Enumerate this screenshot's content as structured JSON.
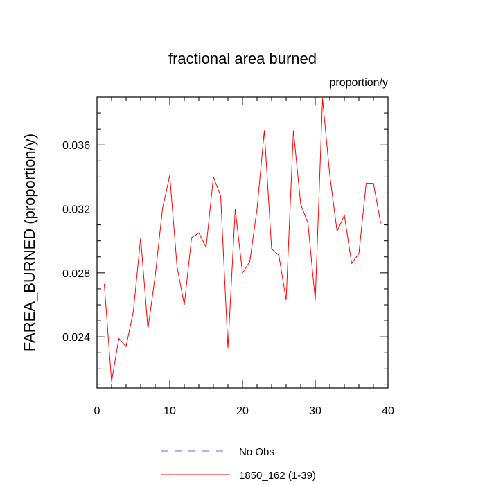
{
  "chart_data": {
    "type": "line",
    "title": "fractional area burned",
    "units_label": "proportion/y",
    "xlabel": "",
    "ylabel": "FAREA_BURNED  (proportion/y)",
    "xlim": [
      0,
      40
    ],
    "ylim": [
      0.0208,
      0.039
    ],
    "x_ticks": [
      0,
      10,
      20,
      30,
      40
    ],
    "y_ticks": [
      0.024,
      0.028,
      0.032,
      0.036
    ],
    "y_tick_labels": [
      "0.024",
      "0.028",
      "0.032",
      "0.036"
    ],
    "grid": false,
    "legend_position": "bottom-center",
    "series": [
      {
        "name": "1850_162 (1-39)",
        "color": "#ff0000",
        "dash": "solid",
        "x": [
          1,
          2,
          3,
          4,
          5,
          6,
          7,
          8,
          9,
          10,
          11,
          12,
          13,
          14,
          15,
          16,
          17,
          18,
          19,
          20,
          21,
          22,
          23,
          24,
          25,
          26,
          27,
          28,
          29,
          30,
          31,
          32,
          33,
          34,
          35,
          36,
          37,
          38,
          39
        ],
        "values": [
          0.0273,
          0.0212,
          0.0239,
          0.0234,
          0.0256,
          0.0302,
          0.0245,
          0.0278,
          0.032,
          0.0341,
          0.0284,
          0.026,
          0.0302,
          0.0305,
          0.0296,
          0.034,
          0.0328,
          0.0233,
          0.032,
          0.028,
          0.0287,
          0.032,
          0.0369,
          0.0295,
          0.0291,
          0.0263,
          0.0369,
          0.0323,
          0.0311,
          0.0263,
          0.0389,
          0.0341,
          0.0306,
          0.0316,
          0.0286,
          0.0292,
          0.0336,
          0.0336,
          0.0311
        ]
      }
    ],
    "legend": [
      {
        "label": "No Obs",
        "color": "#6666ff",
        "dash": "dashed"
      },
      {
        "label": "1850_162 (1-39)",
        "color": "#ff0000",
        "dash": "solid"
      }
    ]
  }
}
